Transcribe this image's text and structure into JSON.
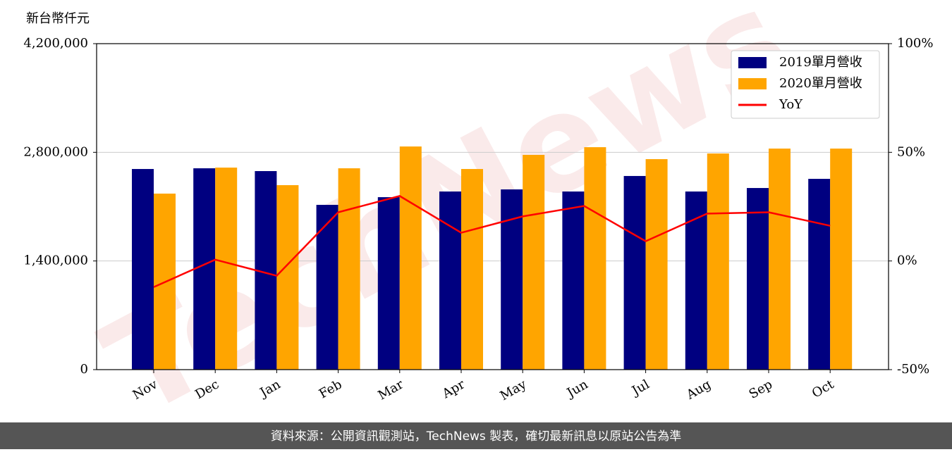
{
  "chart_data": {
    "type": "bar_line",
    "y_label": "新台幣仟元",
    "categories": [
      "Nov",
      "Dec",
      "Jan",
      "Feb",
      "Mar",
      "Apr",
      "May",
      "Jun",
      "Jul",
      "Aug",
      "Sep",
      "Oct"
    ],
    "series": [
      {
        "name": "2019單月營收",
        "color": "#000080",
        "type": "bar",
        "values": [
          2585000,
          2594000,
          2558000,
          2123000,
          2222000,
          2295000,
          2322000,
          2295000,
          2495000,
          2295000,
          2340000,
          2458000
        ]
      },
      {
        "name": "2020單月營收",
        "color": "#ffa500",
        "type": "bar",
        "values": [
          2268000,
          2603000,
          2377000,
          2594000,
          2875000,
          2585000,
          2767000,
          2866000,
          2712000,
          2785000,
          2848000,
          2848000
        ]
      },
      {
        "name": "YoY",
        "color": "#ff0000",
        "type": "line",
        "axis": "y2",
        "values": [
          -12.0,
          0.6,
          -6.8,
          22.4,
          29.9,
          13.0,
          20.5,
          25.3,
          9.1,
          21.8,
          22.4,
          16.2
        ]
      }
    ],
    "ylim": [
      0,
      4200000
    ],
    "yticks": [
      0,
      {
        "value": 1400000,
        "label": "1,400,000"
      },
      {
        "value": 2800000,
        "label": "2,800,000"
      },
      {
        "value": 4200000,
        "label": "4,200,000"
      }
    ],
    "y2lim": [
      -50,
      100
    ],
    "y2ticks": [
      {
        "value": -50,
        "label": "-50%"
      },
      {
        "value": 0,
        "label": "0%"
      },
      {
        "value": 50,
        "label": "50%"
      },
      {
        "value": 100,
        "label": "100%"
      }
    ],
    "grid": true,
    "legend": "upper right",
    "watermark": "TechNews",
    "footer": "資料來源：公開資訊觀測站，TechNews 製表，確切最新訊息以原站公告為準"
  }
}
